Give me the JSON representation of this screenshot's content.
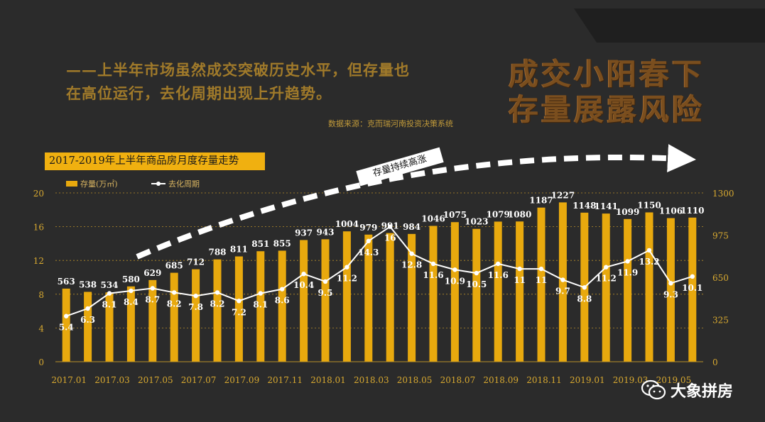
{
  "headline": {
    "line1": "成交小阳春下",
    "line2": "存量展露风险"
  },
  "subtitle": {
    "line1": "——上半年市场虽然成交突破历史水平，但存量也",
    "line2": "在高位运行，去化周期出现上升趋势。"
  },
  "source": "数据来源：克而瑞河南投资决策系统",
  "trend_label": "存量持续高涨",
  "watermark": {
    "icon": "wechat-icon",
    "text": "大象拼房"
  },
  "colors": {
    "bar": "#e8a90e",
    "line": "#ffffff",
    "title_box": "#f0b010",
    "background": "#2b2b2b",
    "headline": "#7a4e1e"
  },
  "chart_data": {
    "type": "bar",
    "title": "2017-2019年上半年商品房月度存量走势",
    "legend": {
      "bar": "存量(万㎡)",
      "line": "去化周期",
      "placement": "top-left"
    },
    "categories": [
      "2017.01",
      "2017.02",
      "2017.03",
      "2017.04",
      "2017.05",
      "2017.06",
      "2017.07",
      "2017.08",
      "2017.09",
      "2017.10",
      "2017.11",
      "2017.12",
      "2018.01",
      "2018.02",
      "2018.03",
      "2018.04",
      "2018.05",
      "2018.06",
      "2018.07",
      "2018.08",
      "2018.09",
      "2018.10",
      "2018.11",
      "2018.12",
      "2019.01",
      "2019.02",
      "2019.03",
      "2019.04",
      "2019.05",
      "2019.06"
    ],
    "x_tick_labels": [
      "2017.01",
      "2017.03",
      "2017.05",
      "2017.07",
      "2017.09",
      "2017.11",
      "2018.01",
      "2018.03",
      "2018.05",
      "2018.07",
      "2018.09",
      "2018.11",
      "2019.01",
      "2019.03",
      "2019.05"
    ],
    "series": [
      {
        "name": "存量(万㎡)",
        "type": "bar",
        "axis": "right",
        "values": [
          563,
          538,
          534,
          580,
          629,
          685,
          712,
          788,
          811,
          851,
          855,
          937,
          943,
          1004,
          979,
          991,
          984,
          1046,
          1075,
          1023,
          1079,
          1080,
          1187,
          1227,
          1148,
          1141,
          1099,
          1150,
          1106,
          1110
        ]
      },
      {
        "name": "去化周期",
        "type": "line",
        "axis": "left",
        "values": [
          5.4,
          6.3,
          8.1,
          8.4,
          8.7,
          8.2,
          7.8,
          8.2,
          7.2,
          8.1,
          8.6,
          10.4,
          9.5,
          11.2,
          14.3,
          16,
          12.8,
          11.6,
          10.9,
          10.5,
          11.6,
          11,
          11,
          9.7,
          8.8,
          11.2,
          11.9,
          13.2,
          9.3,
          10.1
        ]
      }
    ],
    "y_left": {
      "ylim": [
        0,
        20
      ],
      "ticks": [
        "0",
        "4",
        "8",
        "12",
        "16",
        "20"
      ]
    },
    "y_right": {
      "ylim": [
        0,
        1300
      ],
      "ticks": [
        "0",
        "325",
        "650",
        "975",
        "1300"
      ]
    },
    "grid": true
  }
}
